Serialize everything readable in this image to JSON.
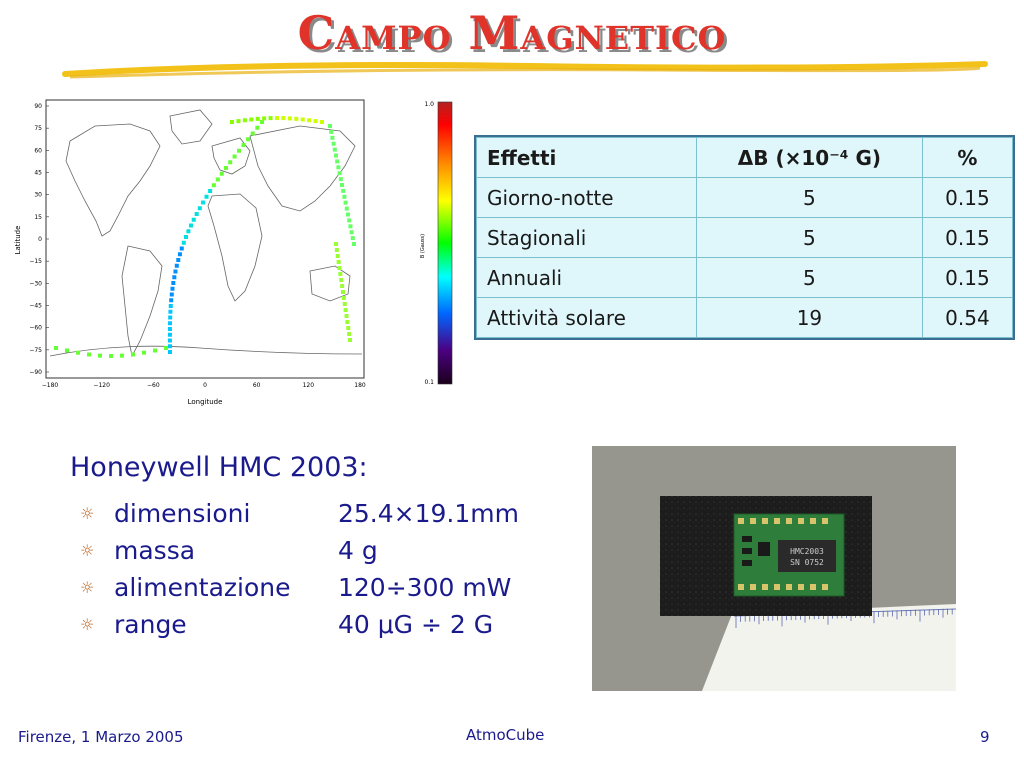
{
  "slide": {
    "title": "Campo Magnetico",
    "footer_left": "Firenze, 1 Marzo 2005",
    "footer_center": "AtmoCube",
    "page_number": "9"
  },
  "map": {
    "y_axis_label": "Latitude",
    "x_axis_label": "Longitude",
    "x_ticks": [
      "−180",
      "−120",
      "−60",
      "0",
      "60",
      "120",
      "180"
    ],
    "y_ticks": [
      "90",
      "75",
      "60",
      "45",
      "30",
      "15",
      "0",
      "−15",
      "−30",
      "−45",
      "−60",
      "−75",
      "−90"
    ],
    "colorbar_label": "B (Gauss)",
    "colorbar_max": "1.0",
    "colorbar_min": "0.1"
  },
  "table": {
    "headers": [
      "Effetti",
      "ΔB (×10⁻⁴ G)",
      "%"
    ],
    "rows": [
      [
        "Giorno-notte",
        "5",
        "0.15"
      ],
      [
        "Stagionali",
        "5",
        "0.15"
      ],
      [
        "Annuali",
        "5",
        "0.15"
      ],
      [
        "Attività solare",
        "19",
        "0.54"
      ]
    ]
  },
  "device": {
    "title": "Honeywell HMC 2003:",
    "bullet_symbol": "☼",
    "specs": [
      {
        "name": "dimensioni",
        "value": "25.4×19.1mm"
      },
      {
        "name": "massa",
        "value": "4 g"
      },
      {
        "name": "alimentazione",
        "value": "120÷300 mW"
      },
      {
        "name": "range",
        "value": "40 μG ÷ 2 G"
      }
    ],
    "chip_text_line1": "HMC2003",
    "chip_text_line2": "SN 0752"
  }
}
